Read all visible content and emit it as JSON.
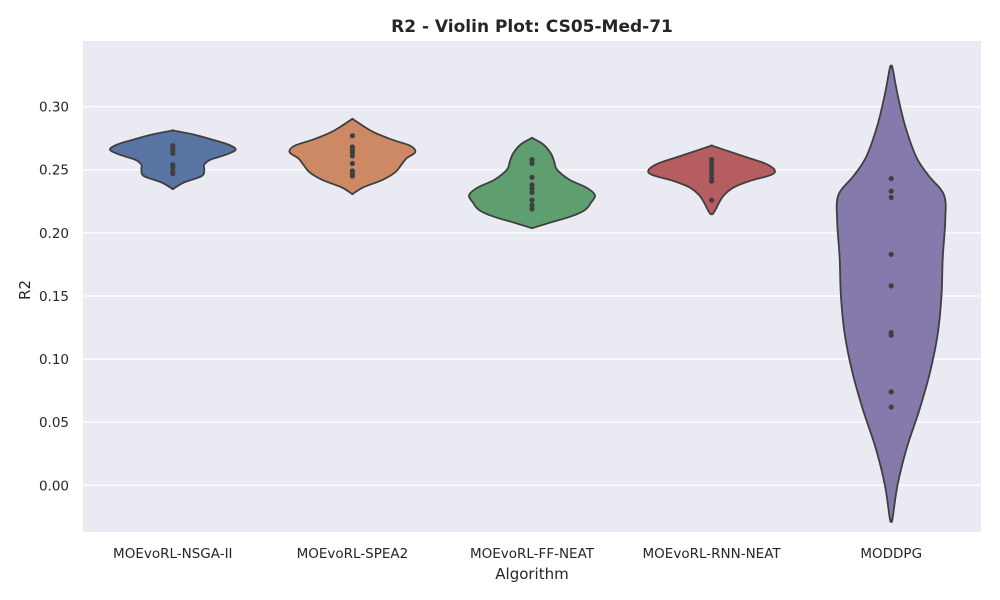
{
  "chart_data": {
    "type": "violin",
    "title": "R2 - Violin Plot: CS05-Med-71",
    "xlabel": "Algorithm",
    "ylabel": "R2",
    "ylim": [
      -0.037,
      0.352
    ],
    "yticks": [
      "0.00",
      "0.05",
      "0.10",
      "0.15",
      "0.20",
      "0.25",
      "0.30"
    ],
    "grid": true,
    "background": "#EAEAF2",
    "series": [
      {
        "name": "MOEvoRL-NSGA-II",
        "color": "#5875A4",
        "range": [
          0.235,
          0.281
        ],
        "points": [
          0.269,
          0.267,
          0.265,
          0.263,
          0.254,
          0.252,
          0.249,
          0.247
        ],
        "profile": [
          [
            0.235,
            0.01
          ],
          [
            0.24,
            0.18
          ],
          [
            0.245,
            0.46
          ],
          [
            0.25,
            0.5
          ],
          [
            0.254,
            0.5
          ],
          [
            0.258,
            0.6
          ],
          [
            0.262,
            0.85
          ],
          [
            0.266,
            1.0
          ],
          [
            0.27,
            0.88
          ],
          [
            0.274,
            0.62
          ],
          [
            0.278,
            0.32
          ],
          [
            0.281,
            0.01
          ]
        ]
      },
      {
        "name": "MOEvoRL-SPEA2",
        "color": "#CC8963",
        "range": [
          0.231,
          0.29
        ],
        "points": [
          0.277,
          0.268,
          0.266,
          0.264,
          0.261,
          0.255,
          0.249,
          0.247,
          0.245
        ],
        "profile": [
          [
            0.231,
            0.01
          ],
          [
            0.236,
            0.17
          ],
          [
            0.242,
            0.48
          ],
          [
            0.248,
            0.68
          ],
          [
            0.254,
            0.78
          ],
          [
            0.259,
            0.86
          ],
          [
            0.264,
            1.0
          ],
          [
            0.269,
            0.92
          ],
          [
            0.274,
            0.62
          ],
          [
            0.28,
            0.33
          ],
          [
            0.285,
            0.16
          ],
          [
            0.29,
            0.01
          ]
        ]
      },
      {
        "name": "MOEvoRL-FF-NEAT",
        "color": "#5F9E6E",
        "range": [
          0.204,
          0.275
        ],
        "points": [
          0.258,
          0.255,
          0.244,
          0.238,
          0.235,
          0.232,
          0.226,
          0.222,
          0.219
        ],
        "profile": [
          [
            0.204,
            0.02
          ],
          [
            0.208,
            0.28
          ],
          [
            0.213,
            0.62
          ],
          [
            0.218,
            0.84
          ],
          [
            0.224,
            0.94
          ],
          [
            0.23,
            1.0
          ],
          [
            0.236,
            0.86
          ],
          [
            0.242,
            0.6
          ],
          [
            0.25,
            0.4
          ],
          [
            0.257,
            0.35
          ],
          [
            0.263,
            0.3
          ],
          [
            0.27,
            0.18
          ],
          [
            0.275,
            0.01
          ]
        ]
      },
      {
        "name": "MOEvoRL-RNN-NEAT",
        "color": "#B55D60",
        "range": [
          0.215,
          0.269
        ],
        "points": [
          0.258,
          0.255,
          0.252,
          0.249,
          0.246,
          0.243,
          0.241,
          0.226
        ],
        "profile": [
          [
            0.215,
            0.02
          ],
          [
            0.219,
            0.07
          ],
          [
            0.224,
            0.12
          ],
          [
            0.23,
            0.2
          ],
          [
            0.236,
            0.35
          ],
          [
            0.241,
            0.6
          ],
          [
            0.246,
            0.95
          ],
          [
            0.25,
            1.0
          ],
          [
            0.255,
            0.85
          ],
          [
            0.26,
            0.55
          ],
          [
            0.265,
            0.25
          ],
          [
            0.269,
            0.01
          ]
        ]
      },
      {
        "name": "MODDPG",
        "color": "#857AAB",
        "range": [
          -0.027,
          0.331
        ],
        "points": [
          0.243,
          0.233,
          0.228,
          0.183,
          0.158,
          0.121,
          0.119,
          0.074,
          0.062
        ],
        "profile": [
          [
            -0.027,
            0.02
          ],
          [
            0.0,
            0.1
          ],
          [
            0.03,
            0.25
          ],
          [
            0.06,
            0.45
          ],
          [
            0.09,
            0.62
          ],
          [
            0.12,
            0.74
          ],
          [
            0.15,
            0.8
          ],
          [
            0.18,
            0.82
          ],
          [
            0.21,
            0.86
          ],
          [
            0.23,
            0.84
          ],
          [
            0.245,
            0.6
          ],
          [
            0.26,
            0.4
          ],
          [
            0.285,
            0.22
          ],
          [
            0.31,
            0.1
          ],
          [
            0.331,
            0.02
          ]
        ]
      }
    ]
  }
}
